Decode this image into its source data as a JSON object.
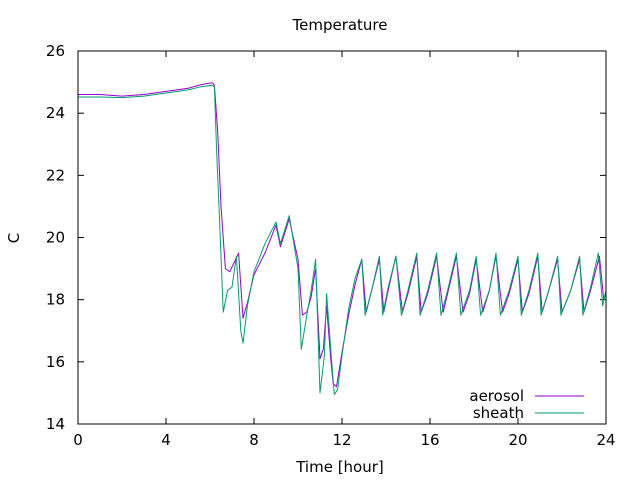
{
  "chart_data": {
    "type": "line",
    "title": "Temperature",
    "xlabel": "Time [hour]",
    "ylabel": "C",
    "xlim": [
      0,
      24
    ],
    "ylim": [
      14,
      26
    ],
    "xticks": [
      0,
      4,
      8,
      12,
      16,
      20,
      24
    ],
    "yticks": [
      14,
      16,
      18,
      20,
      22,
      24,
      26
    ],
    "grid": false,
    "legend_position": "bottom-right",
    "series": [
      {
        "name": "aerosol",
        "color": "#9400d3",
        "points": [
          [
            0,
            24.6
          ],
          [
            1,
            24.6
          ],
          [
            2,
            24.55
          ],
          [
            3,
            24.6
          ],
          [
            4,
            24.7
          ],
          [
            5,
            24.8
          ],
          [
            5.6,
            24.92
          ],
          [
            6.1,
            24.98
          ],
          [
            6.2,
            24.9
          ],
          [
            6.35,
            23.4
          ],
          [
            6.5,
            21.0
          ],
          [
            6.7,
            19.0
          ],
          [
            6.9,
            18.9
          ],
          [
            7.1,
            19.2
          ],
          [
            7.3,
            19.5
          ],
          [
            7.5,
            17.4
          ],
          [
            7.7,
            17.9
          ],
          [
            8.0,
            18.8
          ],
          [
            8.5,
            19.5
          ],
          [
            9.0,
            20.4
          ],
          [
            9.2,
            19.7
          ],
          [
            9.6,
            20.6
          ],
          [
            10.0,
            19.3
          ],
          [
            10.2,
            17.5
          ],
          [
            10.4,
            17.6
          ],
          [
            10.6,
            18.1
          ],
          [
            10.8,
            19.0
          ],
          [
            11.0,
            16.1
          ],
          [
            11.15,
            16.4
          ],
          [
            11.3,
            17.8
          ],
          [
            11.5,
            16.0
          ],
          [
            11.6,
            15.3
          ],
          [
            11.75,
            15.2
          ],
          [
            12.0,
            16.3
          ],
          [
            12.3,
            17.5
          ],
          [
            12.6,
            18.5
          ],
          [
            12.9,
            19.3
          ],
          [
            13.1,
            17.6
          ],
          [
            13.35,
            18.3
          ],
          [
            13.7,
            19.3
          ],
          [
            13.9,
            17.6
          ],
          [
            14.1,
            18.3
          ],
          [
            14.45,
            19.4
          ],
          [
            14.75,
            17.6
          ],
          [
            15.0,
            18.2
          ],
          [
            15.4,
            19.4
          ],
          [
            15.6,
            17.6
          ],
          [
            15.9,
            18.2
          ],
          [
            16.3,
            19.4
          ],
          [
            16.6,
            17.6
          ],
          [
            16.8,
            18.2
          ],
          [
            17.2,
            19.4
          ],
          [
            17.5,
            17.6
          ],
          [
            17.8,
            18.2
          ],
          [
            18.1,
            19.3
          ],
          [
            18.4,
            17.6
          ],
          [
            18.7,
            18.3
          ],
          [
            19.0,
            19.4
          ],
          [
            19.3,
            17.6
          ],
          [
            19.6,
            18.2
          ],
          [
            20.0,
            19.3
          ],
          [
            20.2,
            17.6
          ],
          [
            20.5,
            18.2
          ],
          [
            20.9,
            19.4
          ],
          [
            21.1,
            17.6
          ],
          [
            21.4,
            18.3
          ],
          [
            21.8,
            19.3
          ],
          [
            22.0,
            17.6
          ],
          [
            22.4,
            18.3
          ],
          [
            22.8,
            19.3
          ],
          [
            23.0,
            17.6
          ],
          [
            23.3,
            18.3
          ],
          [
            23.7,
            19.4
          ],
          [
            23.9,
            18.0
          ],
          [
            24,
            18.2
          ]
        ]
      },
      {
        "name": "sheath",
        "color": "#009e73",
        "points": [
          [
            0,
            24.52
          ],
          [
            1,
            24.52
          ],
          [
            2,
            24.5
          ],
          [
            3,
            24.55
          ],
          [
            4,
            24.65
          ],
          [
            5,
            24.75
          ],
          [
            5.6,
            24.85
          ],
          [
            6.1,
            24.9
          ],
          [
            6.2,
            24.85
          ],
          [
            6.3,
            22.8
          ],
          [
            6.45,
            20.3
          ],
          [
            6.6,
            17.6
          ],
          [
            6.8,
            18.3
          ],
          [
            7.0,
            18.4
          ],
          [
            7.2,
            19.4
          ],
          [
            7.4,
            17.0
          ],
          [
            7.5,
            16.6
          ],
          [
            7.7,
            17.8
          ],
          [
            8.0,
            18.9
          ],
          [
            8.5,
            19.8
          ],
          [
            9.0,
            20.5
          ],
          [
            9.2,
            19.8
          ],
          [
            9.6,
            20.7
          ],
          [
            10.0,
            19.0
          ],
          [
            10.15,
            16.4
          ],
          [
            10.4,
            17.5
          ],
          [
            10.6,
            18.3
          ],
          [
            10.8,
            19.3
          ],
          [
            11.0,
            15.0
          ],
          [
            11.2,
            16.2
          ],
          [
            11.3,
            18.2
          ],
          [
            11.5,
            16.3
          ],
          [
            11.65,
            14.95
          ],
          [
            11.8,
            15.1
          ],
          [
            12.0,
            16.2
          ],
          [
            12.3,
            17.7
          ],
          [
            12.6,
            18.7
          ],
          [
            12.9,
            19.3
          ],
          [
            13.05,
            17.5
          ],
          [
            13.35,
            18.3
          ],
          [
            13.7,
            19.4
          ],
          [
            13.85,
            17.5
          ],
          [
            14.1,
            18.4
          ],
          [
            14.45,
            19.4
          ],
          [
            14.7,
            17.5
          ],
          [
            15.0,
            18.3
          ],
          [
            15.4,
            19.5
          ],
          [
            15.55,
            17.5
          ],
          [
            15.9,
            18.3
          ],
          [
            16.3,
            19.5
          ],
          [
            16.5,
            17.5
          ],
          [
            16.8,
            18.3
          ],
          [
            17.2,
            19.5
          ],
          [
            17.4,
            17.5
          ],
          [
            17.8,
            18.3
          ],
          [
            18.1,
            19.4
          ],
          [
            18.3,
            17.5
          ],
          [
            18.7,
            18.3
          ],
          [
            19.0,
            19.5
          ],
          [
            19.2,
            17.5
          ],
          [
            19.6,
            18.3
          ],
          [
            20.0,
            19.4
          ],
          [
            20.15,
            17.5
          ],
          [
            20.5,
            18.3
          ],
          [
            20.9,
            19.5
          ],
          [
            21.05,
            17.5
          ],
          [
            21.4,
            18.3
          ],
          [
            21.8,
            19.4
          ],
          [
            21.95,
            17.5
          ],
          [
            22.4,
            18.3
          ],
          [
            22.8,
            19.4
          ],
          [
            22.95,
            17.5
          ],
          [
            23.3,
            18.4
          ],
          [
            23.65,
            19.5
          ],
          [
            23.85,
            17.8
          ],
          [
            24,
            18.3
          ]
        ]
      }
    ]
  }
}
